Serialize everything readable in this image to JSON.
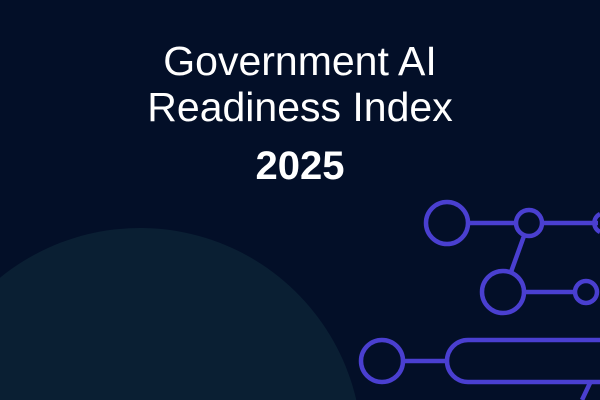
{
  "cover": {
    "title_line1": "Government AI",
    "title_line2": "Readiness Index",
    "year": "2025"
  },
  "colors": {
    "background": "#030f28",
    "accent_circle": "#0a1f33",
    "network_stroke": "#4a3fd0",
    "text": "#ffffff"
  }
}
